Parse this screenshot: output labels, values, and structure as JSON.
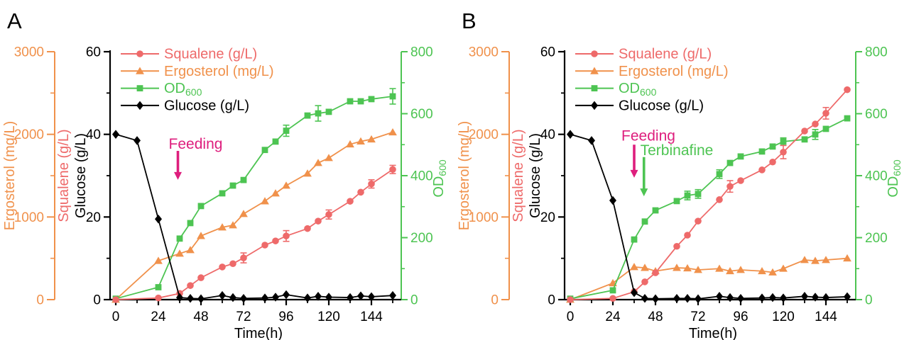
{
  "figure": {
    "background": "#ffffff"
  },
  "chart_data": [
    {
      "type": "line",
      "panel_label": "A",
      "xlabel": "Time(h)",
      "xlim": [
        0,
        161
      ],
      "x_major_ticks": [
        0,
        24,
        48,
        72,
        96,
        120,
        144
      ],
      "x_minor_ticks": [
        12,
        36,
        60,
        84,
        108,
        132,
        156
      ],
      "grid": "off",
      "legend_position": "top-left-inside",
      "axes": {
        "ergosterol": {
          "title": "Ergosterol (mg/L)",
          "color": "#f0914b",
          "lim": [
            0,
            3000
          ],
          "major_ticks": [
            0,
            1000,
            2000,
            3000
          ],
          "minor_ticks": [
            500,
            1500,
            2500
          ]
        },
        "squalene_glucose": {
          "titles": [
            {
              "text": "Squalene (g/L)",
              "color": "#ee6a6a"
            },
            {
              "text": "Glucose (g/L)",
              "color": "#000000"
            }
          ],
          "color": "#000000",
          "lim": [
            0,
            60
          ],
          "major_ticks": [
            0,
            20,
            40,
            60
          ],
          "minor_ticks": [
            10,
            30,
            50
          ]
        },
        "od": {
          "title": "OD",
          "title_sub": "600",
          "color": "#4dc452",
          "lim": [
            0,
            800
          ],
          "major_ticks": [
            0,
            200,
            400,
            600,
            800
          ],
          "minor_ticks": [
            100,
            300,
            500,
            700
          ]
        }
      },
      "legend": [
        {
          "label": "Squalene (g/L)",
          "marker": "circle",
          "color": "#ee6a6a"
        },
        {
          "label": "Ergosterol (mg/L)",
          "marker": "triangle",
          "color": "#f0914b"
        },
        {
          "label": "OD",
          "label_sub": "600",
          "marker": "square",
          "color": "#4dc452"
        },
        {
          "label": "Glucose (g/L)",
          "marker": "diamond",
          "color": "#000000"
        }
      ],
      "annotations": [
        {
          "text": "Feeding",
          "color": "#de1e7d",
          "arrow_t": 35,
          "arrow_v1": 36,
          "arrow_v2": 29,
          "text_center_t": 45,
          "text_v": 36.5
        }
      ],
      "series": [
        {
          "name": "Squalene (g/L)",
          "axis": "squalene_glucose",
          "marker": "circle",
          "color": "#ee6a6a",
          "z": 3,
          "x": [
            0,
            24,
            36,
            42,
            48,
            60,
            66,
            72,
            84,
            90,
            96,
            108,
            114,
            120,
            132,
            138,
            144,
            156
          ],
          "y": [
            0,
            0.4,
            1.5,
            3.4,
            5.3,
            7.9,
            8.7,
            10.1,
            13.2,
            14.2,
            15.4,
            17.2,
            19.0,
            20.6,
            23.8,
            26.0,
            28.0,
            31.5
          ],
          "err": [
            0,
            0,
            0,
            0,
            0,
            0,
            0,
            1.2,
            0,
            0,
            1.3,
            0,
            0,
            1.1,
            0,
            0,
            1.0,
            1.0
          ]
        },
        {
          "name": "Ergosterol (mg/L)",
          "axis": "ergosterol",
          "marker": "triangle",
          "color": "#f0914b",
          "z": 1,
          "x": [
            0,
            24,
            36,
            42,
            48,
            60,
            66,
            72,
            84,
            90,
            96,
            108,
            114,
            120,
            132,
            138,
            144,
            156
          ],
          "y": [
            0,
            470,
            557,
            600,
            771,
            875,
            900,
            1037,
            1191,
            1286,
            1380,
            1526,
            1654,
            1714,
            1880,
            1915,
            1940,
            2025
          ],
          "err": [
            0,
            0,
            0,
            0,
            0,
            0,
            0,
            0,
            0,
            0,
            0,
            0,
            0,
            0,
            0,
            0,
            0,
            0
          ]
        },
        {
          "name": "OD600",
          "axis": "od",
          "marker": "square",
          "color": "#4dc452",
          "z": 2,
          "x": [
            0,
            24,
            36,
            42,
            48,
            60,
            66,
            72,
            84,
            90,
            96,
            108,
            114,
            120,
            132,
            138,
            144,
            156
          ],
          "y": [
            3,
            40,
            197,
            247,
            302,
            343,
            368,
            386,
            483,
            510,
            545,
            594,
            601,
            606,
            640,
            640,
            647,
            656
          ],
          "err": [
            0,
            0,
            0,
            0,
            0,
            0,
            0,
            0,
            0,
            0,
            18,
            0,
            25,
            0,
            0,
            0,
            0,
            25
          ]
        },
        {
          "name": "Glucose (g/L)",
          "axis": "squalene_glucose",
          "marker": "diamond",
          "color": "#000000",
          "z": 4,
          "x": [
            0,
            12,
            24,
            36,
            42,
            48,
            60,
            66,
            72,
            84,
            90,
            96,
            108,
            114,
            120,
            132,
            138,
            144,
            156
          ],
          "y": [
            40,
            38.5,
            19.5,
            0.5,
            0.3,
            0.2,
            1.0,
            0.5,
            0.3,
            0.4,
            0.6,
            1.2,
            0.4,
            0.8,
            0.6,
            0.5,
            0.9,
            0.7,
            1.0
          ],
          "err": [
            0,
            0,
            0,
            0,
            0,
            0,
            0,
            0,
            0,
            0,
            0,
            0,
            0,
            0,
            0,
            0,
            0,
            0,
            0
          ]
        }
      ]
    },
    {
      "type": "line",
      "panel_label": "B",
      "xlabel": "Time(h)",
      "xlim": [
        0,
        161
      ],
      "x_major_ticks": [
        0,
        24,
        48,
        72,
        96,
        120,
        144
      ],
      "x_minor_ticks": [
        12,
        36,
        60,
        84,
        108,
        132,
        156
      ],
      "grid": "off",
      "legend_position": "top-left-inside",
      "axes": {
        "ergosterol": {
          "title": "Ergosterol (mg/L)",
          "color": "#f0914b",
          "lim": [
            0,
            3000
          ],
          "major_ticks": [
            0,
            1000,
            2000,
            3000
          ],
          "minor_ticks": [
            500,
            1500,
            2500
          ]
        },
        "squalene_glucose": {
          "titles": [
            {
              "text": "Squalene (g/L)",
              "color": "#ee6a6a"
            },
            {
              "text": "Glucose (g/L)",
              "color": "#000000"
            }
          ],
          "color": "#000000",
          "lim": [
            0,
            60
          ],
          "major_ticks": [
            0,
            20,
            40,
            60
          ],
          "minor_ticks": [
            10,
            30,
            50
          ]
        },
        "od": {
          "title": "OD",
          "title_sub": "600",
          "color": "#4dc452",
          "lim": [
            0,
            800
          ],
          "major_ticks": [
            0,
            200,
            400,
            600,
            800
          ],
          "minor_ticks": [
            100,
            300,
            500,
            700
          ]
        }
      },
      "legend": [
        {
          "label": "Squalene (g/L)",
          "marker": "circle",
          "color": "#ee6a6a"
        },
        {
          "label": "Ergosterol (mg/L)",
          "marker": "triangle",
          "color": "#f0914b"
        },
        {
          "label": "OD",
          "label_sub": "600",
          "marker": "square",
          "color": "#4dc452"
        },
        {
          "label": "Glucose (g/L)",
          "marker": "diamond",
          "color": "#000000"
        }
      ],
      "annotations": [
        {
          "text": "Feeding",
          "color": "#de1e7d",
          "arrow_t": 36,
          "arrow_v1": 37.5,
          "arrow_v2": 29.5,
          "text_center_t": 44,
          "text_v": 38.5
        },
        {
          "text": "Terbinafine",
          "color": "#4dc452",
          "arrow_t": 41.5,
          "arrow_v1": 34.5,
          "arrow_v2": 25,
          "text_center_t": 60,
          "text_v": 35
        }
      ],
      "series": [
        {
          "name": "Squalene (g/L)",
          "axis": "squalene_glucose",
          "marker": "circle",
          "color": "#ee6a6a",
          "z": 3,
          "x": [
            0,
            24,
            36,
            42,
            48,
            60,
            66,
            72,
            84,
            90,
            96,
            108,
            114,
            120,
            132,
            138,
            144,
            156
          ],
          "y": [
            0,
            0.3,
            1.9,
            4.3,
            6.5,
            12.9,
            15.6,
            19.0,
            24.2,
            27.4,
            28.8,
            31.4,
            33.3,
            35.7,
            40.8,
            42.5,
            45.1,
            50.8
          ],
          "err": [
            0,
            0,
            0,
            0,
            0,
            0,
            0,
            0,
            0,
            1.4,
            0,
            0,
            0,
            1.6,
            0,
            0,
            1.4,
            0
          ]
        },
        {
          "name": "Ergosterol (mg/L)",
          "axis": "ergosterol",
          "marker": "triangle",
          "color": "#f0914b",
          "z": 1,
          "x": [
            0,
            24,
            36,
            42,
            48,
            60,
            66,
            72,
            84,
            90,
            96,
            108,
            114,
            120,
            132,
            138,
            144,
            156
          ],
          "y": [
            0,
            200,
            395,
            385,
            345,
            385,
            380,
            360,
            375,
            345,
            360,
            345,
            330,
            375,
            480,
            470,
            480,
            500
          ],
          "err": [
            0,
            0,
            0,
            0,
            0,
            0,
            0,
            0,
            0,
            0,
            0,
            0,
            0,
            0,
            0,
            0,
            0,
            0
          ]
        },
        {
          "name": "OD600",
          "axis": "od",
          "marker": "square",
          "color": "#4dc452",
          "z": 2,
          "x": [
            0,
            24,
            36,
            42,
            48,
            60,
            66,
            72,
            84,
            90,
            96,
            108,
            114,
            120,
            132,
            138,
            144,
            156
          ],
          "y": [
            3,
            30,
            194,
            252,
            288,
            318,
            336,
            341,
            405,
            441,
            462,
            478,
            494,
            510,
            517,
            533,
            551,
            585
          ],
          "err": [
            0,
            0,
            0,
            0,
            0,
            0,
            14,
            14,
            14,
            0,
            0,
            0,
            0,
            12,
            0,
            16,
            0,
            0
          ]
        },
        {
          "name": "Glucose (g/L)",
          "axis": "squalene_glucose",
          "marker": "diamond",
          "color": "#000000",
          "z": 4,
          "x": [
            0,
            12,
            24,
            36,
            42,
            48,
            60,
            66,
            72,
            84,
            90,
            96,
            108,
            114,
            120,
            132,
            138,
            144,
            156
          ],
          "y": [
            40,
            38.5,
            24,
            1.7,
            0.3,
            0.2,
            0.3,
            0.3,
            0.2,
            0.8,
            0.5,
            0.3,
            0.4,
            0.5,
            0.4,
            0.8,
            0.6,
            0.5,
            0.7
          ],
          "err": [
            0,
            0,
            0,
            0,
            0,
            0,
            0,
            0,
            0,
            0,
            0,
            0,
            0,
            0,
            0,
            0,
            0,
            0,
            0
          ]
        }
      ]
    }
  ]
}
